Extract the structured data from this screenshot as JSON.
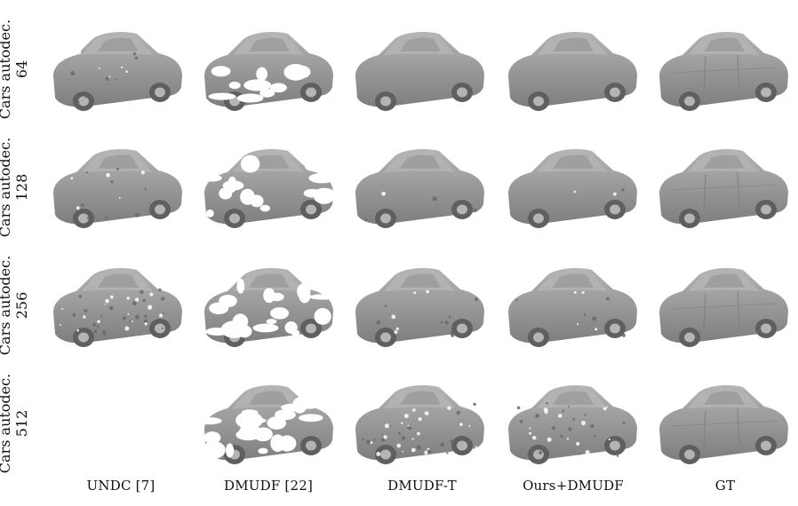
{
  "rows": [
    {
      "label": "Cars autodec.",
      "res": "64"
    },
    {
      "label": "Cars autodec.",
      "res": "128"
    },
    {
      "label": "Cars autodec.",
      "res": "256"
    },
    {
      "label": "Cars autodec.",
      "res": "512"
    }
  ],
  "columns": [
    {
      "label": "UNDC [7]"
    },
    {
      "label": "DMUDF [22]"
    },
    {
      "label": "DMUDF-T"
    },
    {
      "label": "Ours+DMUDF"
    },
    {
      "label": "GT"
    }
  ],
  "colors": {
    "car_body": "#9a9a9a",
    "car_shade": "#7e7e7e",
    "car_light": "#b4b4b4",
    "wheel": "#5f5f5f"
  },
  "cells_missing": [
    [
      3,
      0
    ]
  ]
}
